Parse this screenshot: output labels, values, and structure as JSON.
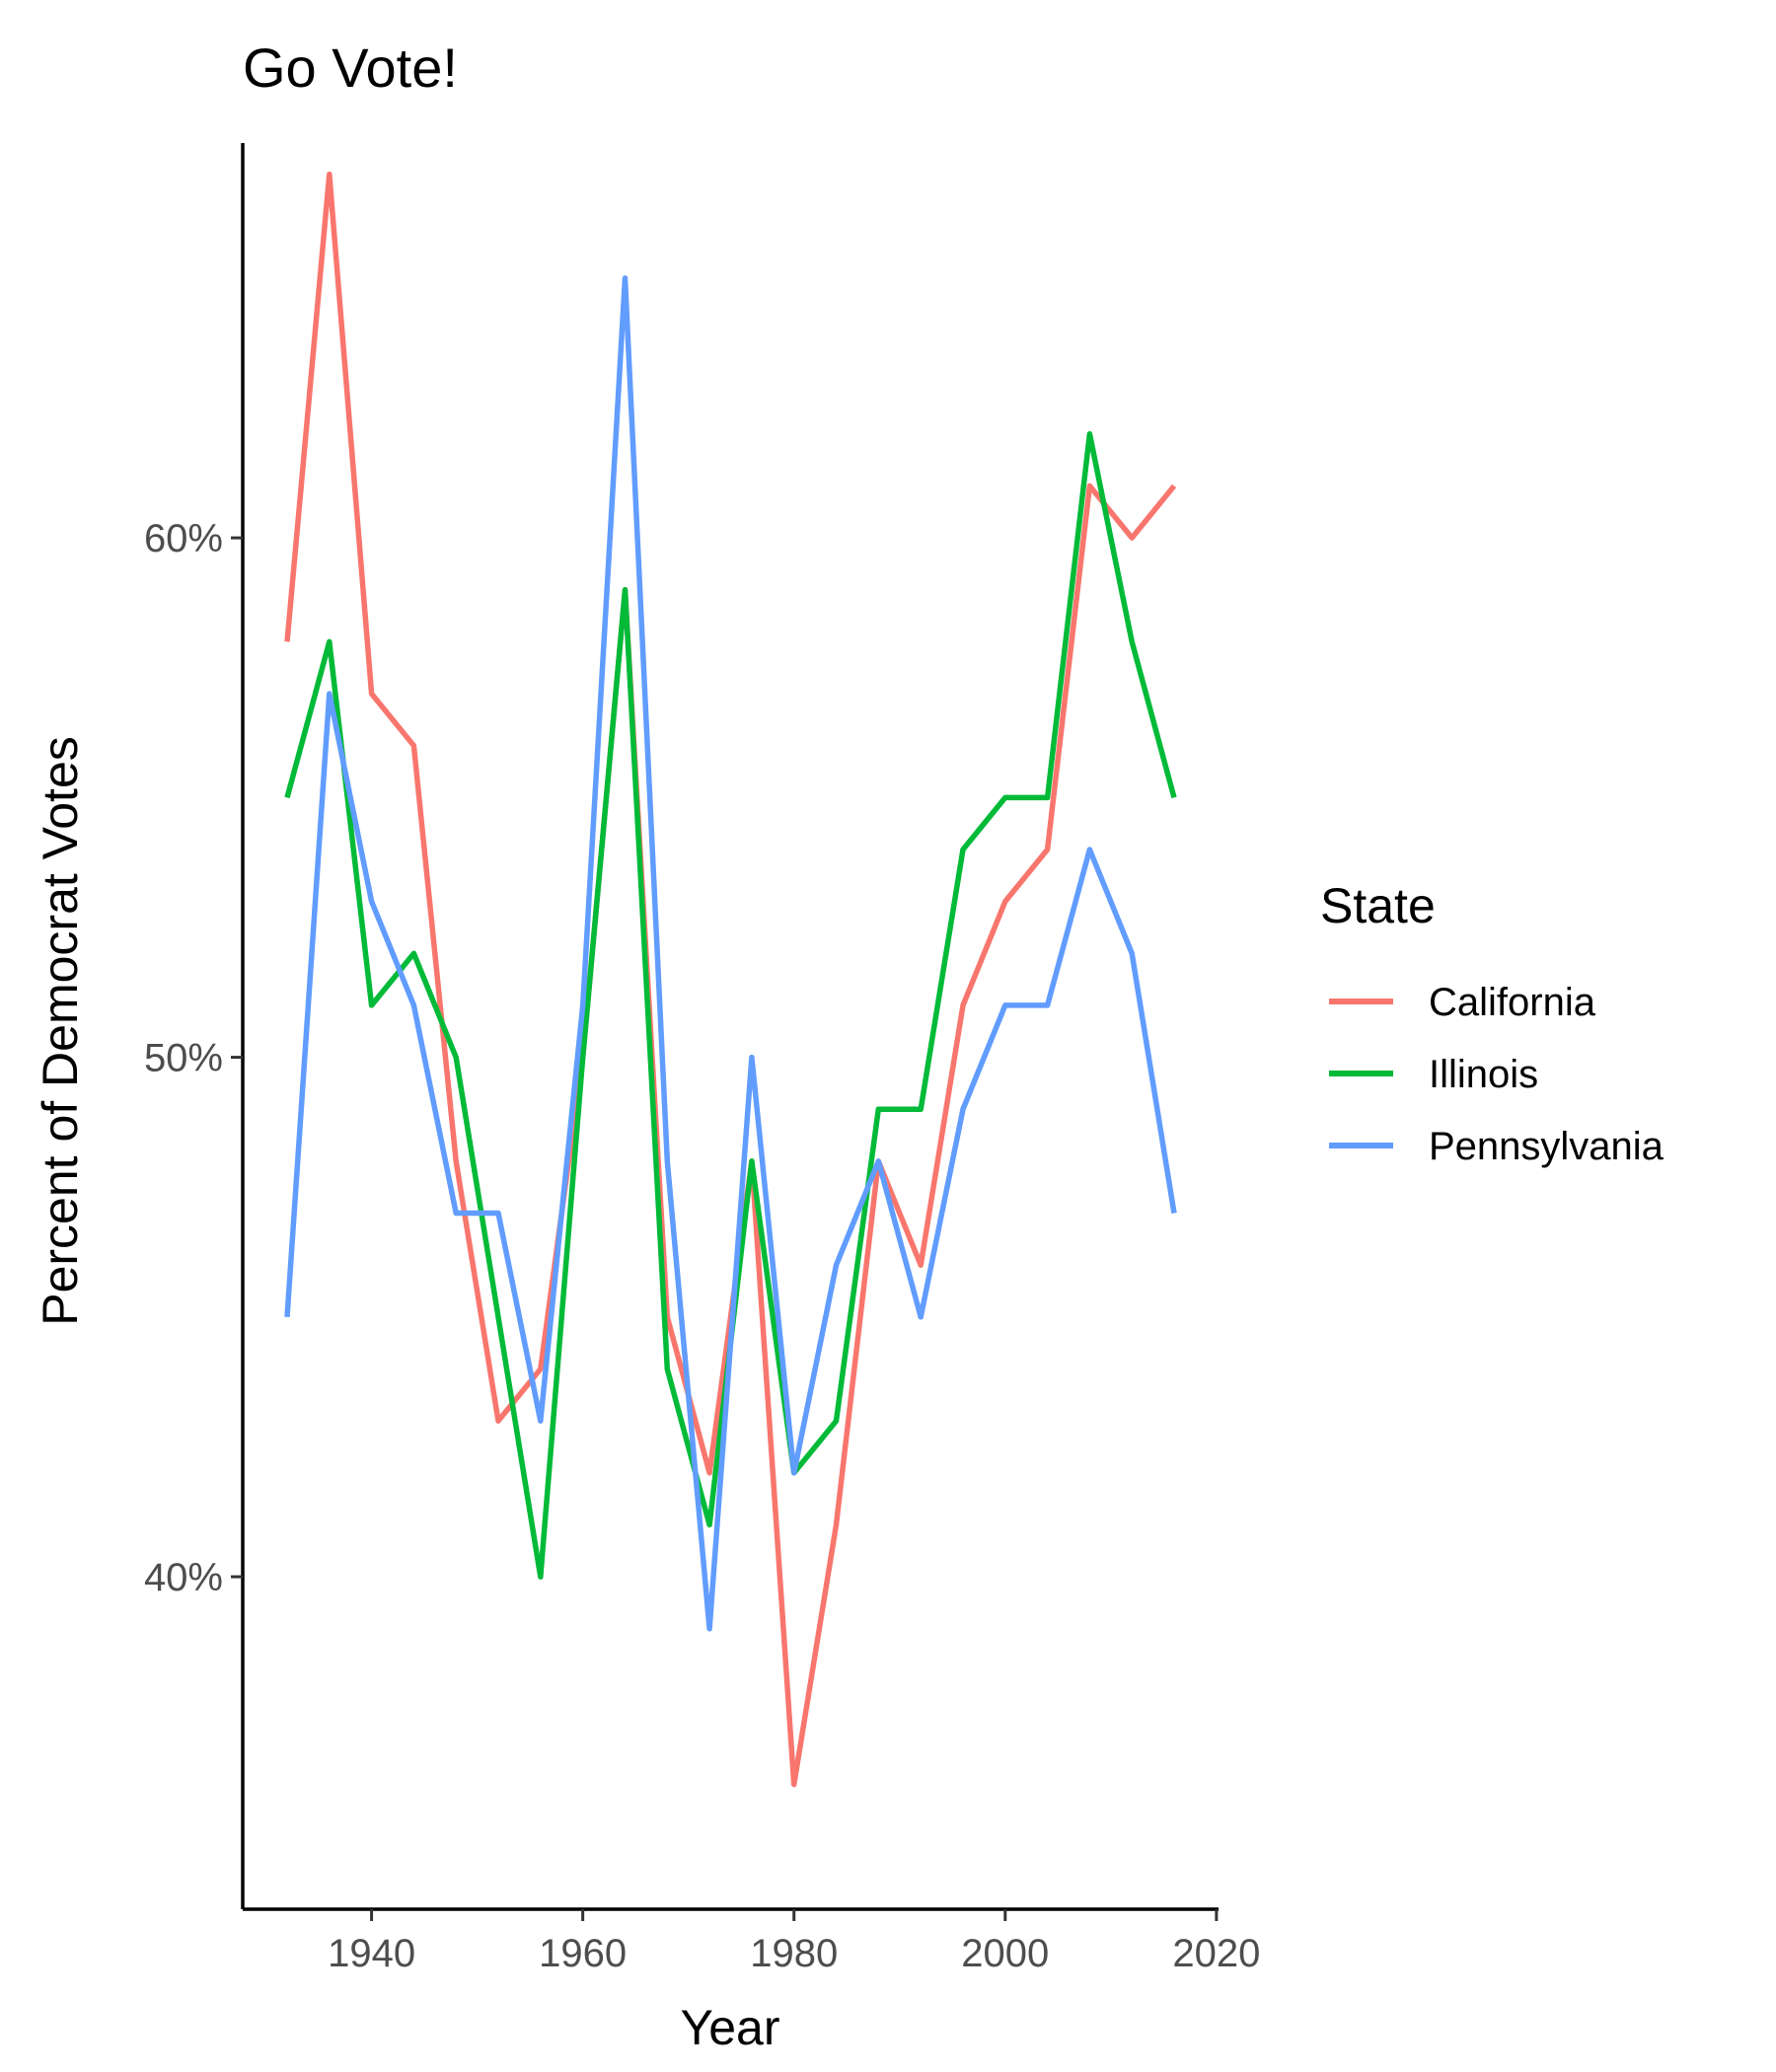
{
  "chart_data": {
    "type": "line",
    "title": "Go Vote!",
    "xlabel": "Year",
    "ylabel": "Percent of Democrat Votes",
    "xlim": [
      1927.8,
      2020.2
    ],
    "ylim": [
      33.6,
      67.6
    ],
    "x_ticks": [
      1940,
      1960,
      1980,
      2000,
      2020
    ],
    "x_tick_labels": [
      "1940",
      "1960",
      "1980",
      "2000",
      "2020"
    ],
    "y_ticks": [
      40,
      50,
      60
    ],
    "y_tick_labels": [
      "40%",
      "50%",
      "60%"
    ],
    "grid": false,
    "legend": {
      "title": "State",
      "position": "right"
    },
    "x": [
      1932,
      1936,
      1940,
      1944,
      1948,
      1952,
      1956,
      1960,
      1964,
      1968,
      1972,
      1976,
      1980,
      1984,
      1988,
      1992,
      1996,
      2000,
      2004,
      2008,
      2012,
      2016
    ],
    "series": [
      {
        "name": "California",
        "color": "#F8766D",
        "values": [
          58,
          67,
          57,
          56,
          48,
          43,
          44,
          50,
          59,
          45,
          42,
          48,
          36,
          41,
          48,
          46,
          51,
          53,
          54,
          61,
          60,
          61
        ]
      },
      {
        "name": "Illinois",
        "color": "#00BA38",
        "values": [
          55,
          58,
          51,
          52,
          50,
          45,
          40,
          50,
          59,
          44,
          41,
          48,
          42,
          43,
          49,
          49,
          54,
          55,
          55,
          62,
          58,
          55
        ]
      },
      {
        "name": "Pennsylvania",
        "color": "#619CFF",
        "values": [
          45,
          57,
          53,
          51,
          47,
          47,
          43,
          51,
          65,
          48,
          39,
          50,
          42,
          46,
          48,
          45,
          49,
          51,
          51,
          54,
          52,
          47
        ]
      }
    ]
  }
}
